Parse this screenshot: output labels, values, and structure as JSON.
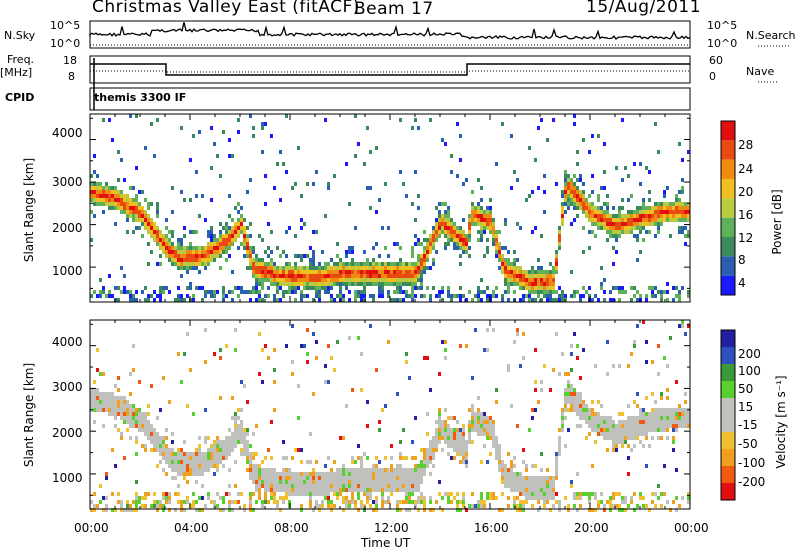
{
  "header": {
    "station": "Christmas Valley East (fitACF)",
    "beam": "Beam 17",
    "date": "15/Aug/2011"
  },
  "summary_panels": {
    "nsky_label": "N.Sky",
    "nsearch_label": "N.Search",
    "freq_label": "Freq.",
    "freq_unit": "[MHz]",
    "nave_label": "Nave",
    "cpid_label": "CPID",
    "cpid_value": "themis 3300 IF",
    "nsky_ticks": [
      "10^5",
      "10^0"
    ],
    "nsearch_ticks": [
      "10^5",
      "10^0"
    ],
    "freq_ticks": [
      "18",
      "8"
    ],
    "nave_ticks": [
      "60",
      "0"
    ]
  },
  "colors": {
    "power_scale": [
      "#1a1aff",
      "#2b5fb0",
      "#3a8a5c",
      "#5fb05a",
      "#b9c940",
      "#f0c020",
      "#f08a10",
      "#e84a10",
      "#e01010"
    ],
    "velocity_scale": [
      "#e01010",
      "#f05a10",
      "#f0a020",
      "#f0c030",
      "#c0c0bc",
      "#c0c0bc",
      "#5ad030",
      "#3a9a3a",
      "#3050c0",
      "#2020a0"
    ],
    "ground_scatter": "#c0c0bc"
  },
  "chart_data": [
    {
      "type": "heatmap",
      "name": "power",
      "ylabel": "Slant Range [km]",
      "colorbar_label": "Power [dB]",
      "colorbar_ticks": [
        "28",
        "24",
        "20",
        "16",
        "12",
        "8",
        "4"
      ],
      "colorbar_range": [
        0,
        32
      ],
      "x_ticks": [
        "00:00",
        "04:00",
        "08:00",
        "12:00",
        "16:00",
        "20:00",
        "00:00"
      ],
      "y_ticks": [
        "1000",
        "2000",
        "3000",
        "4000"
      ],
      "xlim_hours": [
        0,
        24
      ],
      "ylim_km": [
        180,
        4600
      ]
    },
    {
      "type": "heatmap",
      "name": "velocity",
      "ylabel": "Slant Range [km]",
      "xlabel": "Time UT",
      "colorbar_label": "Velocity [m s⁻¹]",
      "colorbar_ticks": [
        "200",
        "100",
        "50",
        "15",
        "-15",
        "-50",
        "-100",
        "-200"
      ],
      "x_ticks": [
        "00:00",
        "04:00",
        "08:00",
        "12:00",
        "16:00",
        "20:00",
        "00:00"
      ],
      "y_ticks": [
        "1000",
        "2000",
        "3000",
        "4000"
      ],
      "xlim_hours": [
        0,
        24
      ],
      "ylim_km": [
        180,
        4600
      ]
    }
  ]
}
